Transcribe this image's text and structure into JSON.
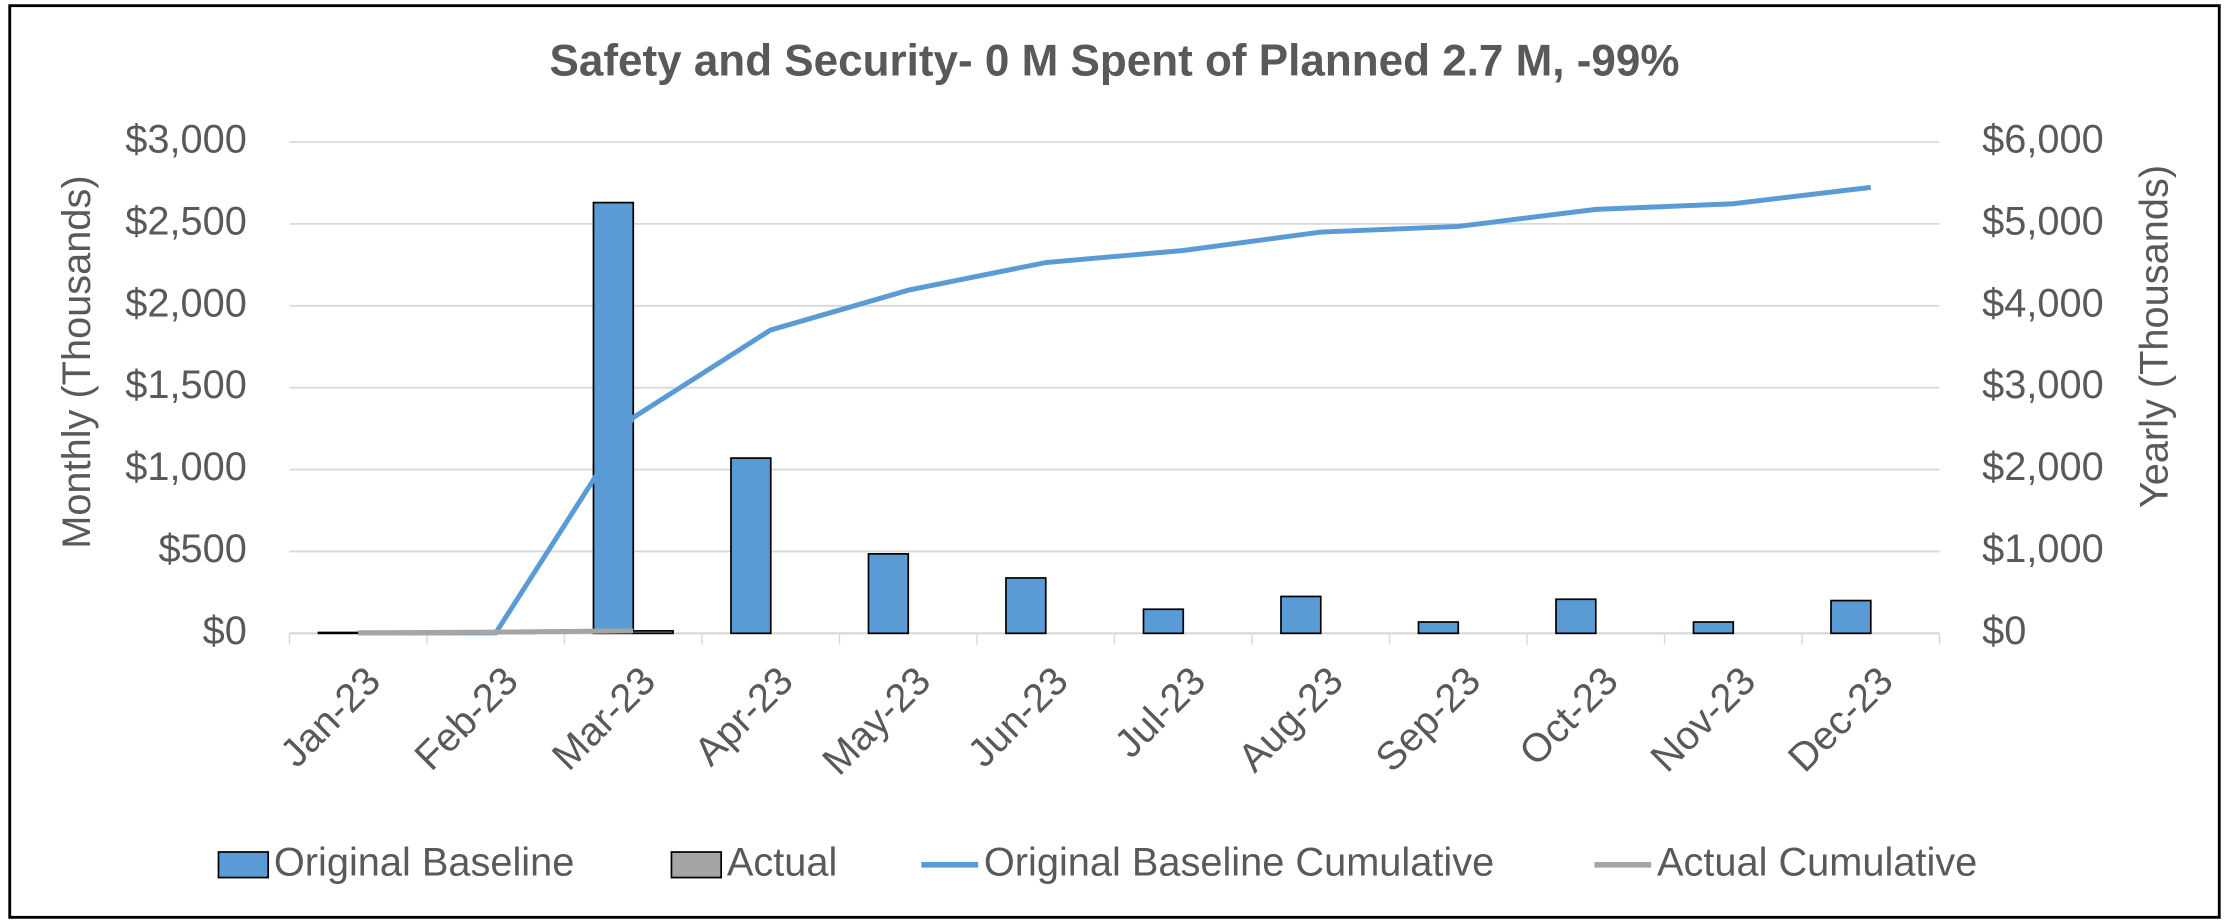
{
  "chart_data": {
    "type": "bar",
    "title": "Safety and Security- 0 M Spent of Planned 2.7 M, -99%",
    "y_label": "Monthly (Thousands)",
    "y2_label": "Yearly (Thousands)",
    "categories": [
      "Jan-23",
      "Feb-23",
      "Mar-23",
      "Apr-23",
      "May-23",
      "Jun-23",
      "Jul-23",
      "Aug-23",
      "Sep-23",
      "Oct-23",
      "Nov-23",
      "Dec-23"
    ],
    "series": [
      {
        "name": "Original Baseline",
        "type": "bar",
        "color": "#5b9bd5",
        "values": [
          5,
          0,
          2630,
          1070,
          485,
          338,
          147,
          225,
          69,
          208,
          69,
          200
        ]
      },
      {
        "name": "Actual",
        "type": "bar",
        "color": "#a5a5a5",
        "values": [
          5,
          10,
          15,
          null,
          null,
          null,
          null,
          null,
          null,
          null,
          null,
          null
        ]
      },
      {
        "name": "Original Baseline Cumulative",
        "type": "line",
        "axis": "y2",
        "color": "#5b9bd5",
        "values": [
          5,
          5,
          2635,
          3705,
          4190,
          4528,
          4675,
          4900,
          4969,
          5177,
          5246,
          5446
        ]
      },
      {
        "name": "Actual Cumulative",
        "type": "line",
        "axis": "y2",
        "color": "#a5a5a5",
        "values": [
          5,
          15,
          30,
          null,
          null,
          null,
          null,
          null,
          null,
          null,
          null,
          null
        ]
      }
    ],
    "ylim": [
      0,
      3000
    ],
    "yticks": [
      {
        "value": 0,
        "label": "$0"
      },
      {
        "value": 500,
        "label": "$500"
      },
      {
        "value": 1000,
        "label": "$1,000"
      },
      {
        "value": 1500,
        "label": "$1,500"
      },
      {
        "value": 2000,
        "label": "$2,000"
      },
      {
        "value": 2500,
        "label": "$2,500"
      },
      {
        "value": 3000,
        "label": "$3,000"
      }
    ],
    "y2lim": [
      0,
      6000
    ],
    "y2ticks": [
      {
        "value": 0,
        "label": "$0"
      },
      {
        "value": 1000,
        "label": "$1,000"
      },
      {
        "value": 2000,
        "label": "$2,000"
      },
      {
        "value": 3000,
        "label": "$3,000"
      },
      {
        "value": 4000,
        "label": "$4,000"
      },
      {
        "value": 5000,
        "label": "$5,000"
      },
      {
        "value": 6000,
        "label": "$6,000"
      }
    ],
    "grid": true,
    "legend": "bottom"
  }
}
